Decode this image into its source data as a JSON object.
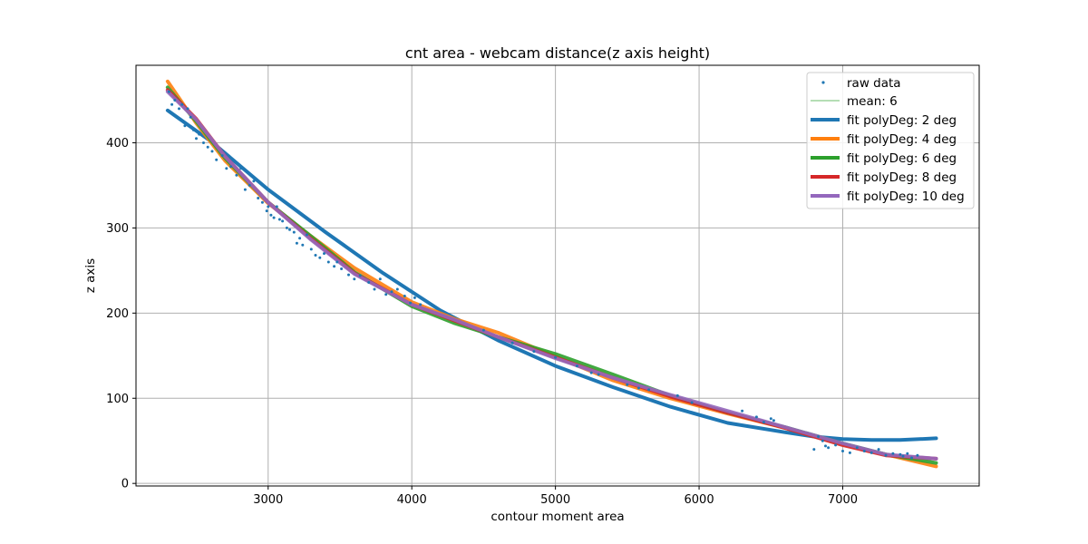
{
  "chart_data": {
    "type": "scatter",
    "title": "cnt area - webcam distance(z axis height)",
    "xlabel": "contour moment area",
    "ylabel": "z axis",
    "xlim": [
      2080,
      7950
    ],
    "ylim": [
      -3,
      491
    ],
    "xticks": [
      3000,
      4000,
      5000,
      6000,
      7000
    ],
    "yticks": [
      0,
      100,
      200,
      300,
      400
    ],
    "grid": true,
    "legend_position": "top-right",
    "raw_data": {
      "name": "raw data",
      "color": "#1f77b4",
      "x": [
        2310,
        2330,
        2350,
        2380,
        2400,
        2420,
        2440,
        2460,
        2480,
        2500,
        2520,
        2550,
        2580,
        2610,
        2640,
        2680,
        2710,
        2740,
        2780,
        2810,
        2840,
        2870,
        2900,
        2930,
        2960,
        2990,
        3000,
        3020,
        3040,
        3060,
        3080,
        3100,
        3130,
        3150,
        3180,
        3200,
        3220,
        3240,
        3270,
        3300,
        3330,
        3360,
        3390,
        3420,
        3460,
        3480,
        3510,
        3560,
        3600,
        3640,
        3700,
        3740,
        3780,
        3820,
        3860,
        3900,
        3950,
        3990,
        4020,
        4060,
        4500,
        4700,
        4850,
        5000,
        5150,
        5250,
        5300,
        5500,
        5580,
        5650,
        5850,
        5950,
        6300,
        6400,
        6450,
        6500,
        6520,
        6800,
        6830,
        6860,
        6880,
        6900,
        6950,
        7000,
        7050,
        7100,
        7150,
        7200,
        7250,
        7300,
        7350,
        7400,
        7420,
        7450,
        7480,
        7520
      ],
      "y": [
        460,
        445,
        450,
        440,
        445,
        420,
        440,
        430,
        415,
        405,
        410,
        400,
        395,
        390,
        380,
        385,
        370,
        372,
        362,
        370,
        345,
        350,
        355,
        335,
        330,
        320,
        325,
        315,
        312,
        325,
        310,
        308,
        300,
        298,
        295,
        282,
        288,
        280,
        292,
        275,
        268,
        265,
        270,
        260,
        255,
        260,
        252,
        245,
        240,
        244,
        236,
        228,
        240,
        222,
        225,
        228,
        220,
        212,
        218,
        210,
        180,
        165,
        155,
        148,
        138,
        130,
        128,
        116,
        112,
        110,
        103,
        95,
        85,
        78,
        72,
        76,
        74,
        40,
        55,
        50,
        44,
        42,
        45,
        38,
        36,
        42,
        38,
        36,
        40,
        33,
        35,
        34,
        32,
        35,
        30,
        33
      ]
    },
    "mean": {
      "name": "mean: 6",
      "color": "#2ca02c"
    },
    "series": [
      {
        "name": "fit polyDeg: 2 deg",
        "color": "#1f77b4",
        "x": [
          2300,
          2600,
          3000,
          3400,
          3800,
          4200,
          4600,
          5000,
          5400,
          5800,
          6200,
          6600,
          6800,
          7000,
          7200,
          7400,
          7650
        ],
        "y": [
          438,
          402,
          345,
          295,
          247,
          203,
          168,
          138,
          113,
          90,
          71,
          60,
          55,
          52,
          51,
          51,
          53
        ]
      },
      {
        "name": "fit polyDeg: 4 deg",
        "color": "#ff7f0e",
        "x": [
          2300,
          2500,
          2700,
          3000,
          3300,
          3600,
          4000,
          4300,
          4600,
          5000,
          5400,
          5800,
          6200,
          6600,
          7000,
          7300,
          7650
        ],
        "y": [
          472,
          423,
          379,
          329,
          290,
          253,
          213,
          193,
          177,
          149,
          121,
          100,
          82,
          65,
          46,
          34,
          20
        ]
      },
      {
        "name": "fit polyDeg: 6 deg",
        "color": "#2ca02c",
        "x": [
          2300,
          2500,
          2700,
          3000,
          3300,
          3600,
          4000,
          4300,
          4600,
          5000,
          5400,
          5800,
          6200,
          6600,
          7000,
          7300,
          7650
        ],
        "y": [
          465,
          425,
          382,
          330,
          290,
          248,
          208,
          188,
          172,
          152,
          128,
          103,
          83,
          66,
          47,
          34,
          24
        ]
      },
      {
        "name": "fit polyDeg: 8 deg",
        "color": "#d62728",
        "x": [
          2300,
          2500,
          2700,
          3000,
          3300,
          3600,
          4000,
          4300,
          4600,
          5000,
          5400,
          5800,
          6200,
          6600,
          7000,
          7300,
          7650
        ],
        "y": [
          462,
          428,
          384,
          330,
          287,
          247,
          210,
          191,
          172,
          148,
          124,
          102,
          83,
          65,
          45,
          33,
          29
        ]
      },
      {
        "name": "fit polyDeg: 10 deg",
        "color": "#9467bd",
        "x": [
          2300,
          2500,
          2700,
          3000,
          3300,
          3600,
          4000,
          4300,
          4600,
          5000,
          5400,
          5800,
          6200,
          6600,
          7000,
          7300,
          7650
        ],
        "y": [
          460,
          427,
          384,
          330,
          286,
          246,
          210,
          192,
          172,
          147,
          124,
          104,
          85,
          66,
          47,
          34,
          29
        ]
      }
    ]
  }
}
